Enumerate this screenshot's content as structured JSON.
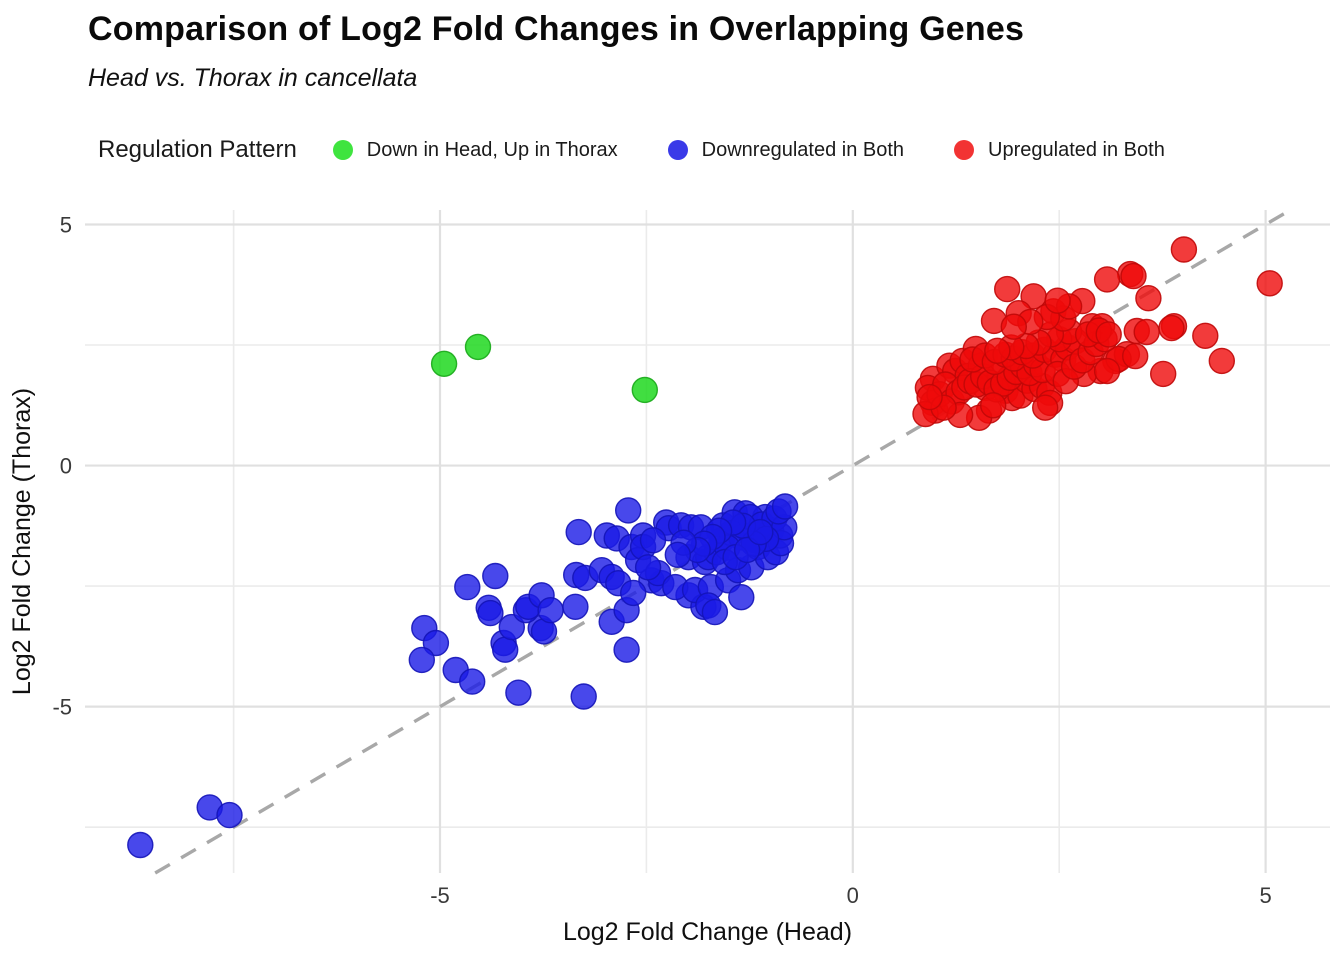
{
  "header": {
    "title": "Comparison of Log2 Fold Changes in Overlapping Genes",
    "subtitle": "Head vs. Thorax in cancellata"
  },
  "legend": {
    "title": "Regulation Pattern"
  },
  "chart_data": {
    "type": "scatter",
    "title": "Comparison of Log2 Fold Changes in Overlapping Genes",
    "subtitle": "Head vs. Thorax in cancellata",
    "xlabel": "Log2 Fold Change (Head)",
    "ylabel": "Log2 Fold Change (Thorax)",
    "xlim": [
      -9.3,
      5.78
    ],
    "ylim": [
      -8.45,
      5.3
    ],
    "x_major_ticks": [
      -5,
      0,
      5
    ],
    "y_major_ticks": [
      5,
      0,
      -5
    ],
    "x_minor_gridlines": [
      -7.5,
      -2.5,
      2.5
    ],
    "y_minor_gridlines": [
      -7.5,
      -2.5,
      2.5
    ],
    "grid": true,
    "legend_position": "top",
    "legend_title": "Regulation Pattern",
    "identity_line": {
      "type": "dashed",
      "slope": 1,
      "intercept": 0,
      "color": "#a8a8a8"
    },
    "colors": {
      "major_grid": "#e0e0e0",
      "minor_grid": "#ebebeb",
      "tick_label": "#3a3a3a",
      "axis_title": "#101010"
    },
    "series": [
      {
        "name": "Down in Head, Up in Thorax",
        "color": "#20d820",
        "stroke": "#18a818",
        "legend_color": "#3fe43f",
        "opacity": 0.85,
        "points": [
          [
            -4.95,
            2.11
          ],
          [
            -4.54,
            2.46
          ],
          [
            -2.52,
            1.57
          ]
        ]
      },
      {
        "name": "Downregulated in Both",
        "color": "#1a1ae6",
        "stroke": "#1414b8",
        "legend_color": "#3a3ae8",
        "opacity": 0.8,
        "points": [
          [
            -8.63,
            -7.87
          ],
          [
            -7.79,
            -7.09
          ],
          [
            -7.55,
            -7.25
          ],
          [
            -5.19,
            -3.37
          ],
          [
            -5.05,
            -3.68
          ],
          [
            -5.22,
            -4.03
          ],
          [
            -4.67,
            -2.52
          ],
          [
            -4.33,
            -2.29
          ],
          [
            -4.41,
            -2.95
          ],
          [
            -4.39,
            -3.06
          ],
          [
            -4.81,
            -4.24
          ],
          [
            -4.61,
            -4.48
          ],
          [
            -4.23,
            -3.68
          ],
          [
            -4.21,
            -3.82
          ],
          [
            -4.13,
            -3.35
          ],
          [
            -3.78,
            -3.37
          ],
          [
            -3.74,
            -3.44
          ],
          [
            -4.05,
            -4.71
          ],
          [
            -3.26,
            -4.79
          ],
          [
            -3.32,
            -1.38
          ],
          [
            -3.96,
            -3.0
          ],
          [
            -3.93,
            -2.93
          ],
          [
            -3.77,
            -2.69
          ],
          [
            -3.66,
            -3.0
          ],
          [
            -3.36,
            -2.93
          ],
          [
            -3.35,
            -2.27
          ],
          [
            -3.24,
            -2.33
          ],
          [
            -3.04,
            -2.17
          ],
          [
            -2.92,
            -2.31
          ],
          [
            -2.84,
            -2.44
          ],
          [
            -2.72,
            -0.93
          ],
          [
            -2.98,
            -1.45
          ],
          [
            -2.86,
            -1.51
          ],
          [
            -2.68,
            -1.69
          ],
          [
            -2.54,
            -1.45
          ],
          [
            -2.92,
            -3.24
          ],
          [
            -2.74,
            -3.0
          ],
          [
            -2.74,
            -3.82
          ],
          [
            -2.26,
            -1.18
          ],
          [
            -2.23,
            -1.3
          ],
          [
            -2.08,
            -1.24
          ],
          [
            -1.96,
            -1.28
          ],
          [
            -2.44,
            -2.38
          ],
          [
            -2.32,
            -2.44
          ],
          [
            -1.99,
            -2.69
          ],
          [
            -1.81,
            -2.93
          ],
          [
            -1.99,
            -1.9
          ],
          [
            -1.79,
            -2.0
          ],
          [
            -2.6,
            -1.96
          ],
          [
            -2.54,
            -1.69
          ],
          [
            -2.42,
            -1.55
          ],
          [
            -2.66,
            -2.64
          ],
          [
            -2.36,
            -2.23
          ],
          [
            -2.48,
            -2.11
          ],
          [
            -2.15,
            -2.52
          ],
          [
            -1.91,
            -2.58
          ],
          [
            -1.72,
            -2.52
          ],
          [
            -1.51,
            -2.38
          ],
          [
            -1.39,
            -2.17
          ],
          [
            -1.23,
            -2.11
          ],
          [
            -1.75,
            -2.9
          ],
          [
            -1.35,
            -2.73
          ],
          [
            -1.67,
            -3.04
          ],
          [
            -1.57,
            -1.24
          ],
          [
            -1.43,
            -0.97
          ],
          [
            -1.3,
            -0.99
          ],
          [
            -1.23,
            -1.45
          ],
          [
            -1.17,
            -1.55
          ],
          [
            -1.06,
            -1.07
          ],
          [
            -0.99,
            -1.34
          ],
          [
            -1.84,
            -1.28
          ],
          [
            -1.75,
            -1.9
          ],
          [
            -1.65,
            -1.8
          ],
          [
            -1.59,
            -1.55
          ],
          [
            -1.47,
            -1.4
          ],
          [
            -1.35,
            -1.49
          ],
          [
            -1.15,
            -1.69
          ],
          [
            -1.03,
            -1.9
          ],
          [
            -0.93,
            -1.8
          ],
          [
            -0.88,
            -1.45
          ],
          [
            -0.87,
            -1.61
          ],
          [
            -1.24,
            -1.07
          ],
          [
            -1.1,
            -1.22
          ],
          [
            -0.95,
            -1.1
          ],
          [
            -0.83,
            -1.28
          ],
          [
            -0.9,
            -0.95
          ],
          [
            -1.05,
            -1.52
          ],
          [
            -1.2,
            -1.62
          ],
          [
            -1.33,
            -1.25
          ],
          [
            -1.45,
            -1.18
          ],
          [
            -1.52,
            -1.7
          ],
          [
            -1.62,
            -1.35
          ],
          [
            -1.7,
            -1.48
          ],
          [
            -1.8,
            -1.62
          ],
          [
            -1.88,
            -1.75
          ],
          [
            -1.55,
            -2.0
          ],
          [
            -1.42,
            -1.9
          ],
          [
            -1.28,
            -1.75
          ],
          [
            -1.12,
            -1.38
          ],
          [
            -0.82,
            -0.85
          ],
          [
            -2.05,
            -1.6
          ],
          [
            -2.12,
            -1.85
          ]
        ]
      },
      {
        "name": "Upregulated in Both",
        "color": "#ef0a0a",
        "stroke": "#c00808",
        "legend_color": "#f23333",
        "opacity": 0.8,
        "points": [
          [
            4.01,
            4.48
          ],
          [
            3.36,
            3.97
          ],
          [
            3.4,
            3.93
          ],
          [
            3.08,
            3.86
          ],
          [
            5.05,
            3.78
          ],
          [
            1.87,
            3.66
          ],
          [
            3.58,
            3.47
          ],
          [
            2.19,
            3.51
          ],
          [
            2.78,
            3.41
          ],
          [
            2.01,
            3.16
          ],
          [
            1.71,
            3.0
          ],
          [
            2.43,
            3.2
          ],
          [
            2.9,
            2.89
          ],
          [
            3.89,
            2.89
          ],
          [
            3.44,
            2.79
          ],
          [
            4.27,
            2.69
          ],
          [
            4.47,
            2.17
          ],
          [
            3.76,
            1.9
          ],
          [
            3.18,
            2.17
          ],
          [
            3.32,
            2.31
          ],
          [
            3.0,
            1.96
          ],
          [
            2.8,
            1.9
          ],
          [
            3.02,
            2.89
          ],
          [
            3.56,
            2.77
          ],
          [
            3.86,
            2.85
          ],
          [
            3.22,
            2.21
          ],
          [
            3.42,
            2.27
          ],
          [
            3.08,
            1.96
          ],
          [
            0.97,
            1.8
          ],
          [
            0.91,
            1.61
          ],
          [
            0.97,
            1.3
          ],
          [
            1.0,
            1.14
          ],
          [
            1.17,
            2.07
          ],
          [
            1.24,
            1.96
          ],
          [
            1.33,
            2.17
          ],
          [
            1.39,
            1.86
          ],
          [
            1.49,
            2.42
          ],
          [
            1.55,
            2.07
          ],
          [
            1.61,
            1.61
          ],
          [
            1.65,
            1.14
          ],
          [
            1.53,
            0.99
          ],
          [
            1.78,
            1.9
          ],
          [
            1.85,
            1.55
          ],
          [
            1.93,
            1.4
          ],
          [
            2.03,
            1.45
          ],
          [
            2.11,
            1.76
          ],
          [
            2.2,
            1.59
          ],
          [
            2.29,
            1.65
          ],
          [
            2.38,
            1.51
          ],
          [
            2.39,
            1.3
          ],
          [
            2.33,
            1.2
          ],
          [
            0.88,
            1.07
          ],
          [
            1.05,
            1.48
          ],
          [
            1.12,
            1.68
          ],
          [
            1.2,
            1.33
          ],
          [
            1.28,
            1.52
          ],
          [
            1.35,
            1.62
          ],
          [
            1.42,
            1.75
          ],
          [
            1.5,
            1.68
          ],
          [
            1.58,
            1.85
          ],
          [
            1.66,
            1.72
          ],
          [
            1.74,
            1.58
          ],
          [
            1.82,
            1.7
          ],
          [
            1.9,
            1.82
          ],
          [
            1.98,
            1.94
          ],
          [
            2.06,
            2.06
          ],
          [
            2.14,
            1.92
          ],
          [
            2.22,
            2.1
          ],
          [
            2.3,
            1.98
          ],
          [
            1.45,
            2.2
          ],
          [
            1.6,
            2.28
          ],
          [
            1.72,
            2.15
          ],
          [
            1.85,
            2.3
          ],
          [
            1.95,
            2.22
          ],
          [
            2.05,
            2.35
          ],
          [
            2.18,
            2.28
          ],
          [
            2.32,
            2.4
          ],
          [
            2.45,
            2.3
          ],
          [
            2.55,
            2.2
          ],
          [
            2.6,
            2.45
          ],
          [
            2.7,
            2.58
          ],
          [
            2.48,
            1.9
          ],
          [
            2.58,
            1.75
          ],
          [
            2.68,
            2.05
          ],
          [
            2.78,
            2.18
          ],
          [
            2.88,
            2.35
          ],
          [
            2.95,
            2.52
          ],
          [
            3.05,
            2.62
          ],
          [
            1.3,
            1.05
          ],
          [
            1.7,
            1.25
          ],
          [
            2.5,
            2.62
          ],
          [
            2.62,
            2.78
          ],
          [
            2.4,
            2.72
          ],
          [
            2.25,
            2.55
          ],
          [
            2.1,
            2.48
          ],
          [
            1.92,
            2.45
          ],
          [
            1.75,
            2.38
          ],
          [
            2.85,
            2.72
          ],
          [
            2.98,
            2.8
          ],
          [
            3.1,
            2.72
          ],
          [
            1.1,
            1.2
          ],
          [
            0.93,
            1.42
          ],
          [
            2.55,
            3.05
          ],
          [
            2.35,
            3.08
          ],
          [
            2.15,
            2.98
          ],
          [
            1.95,
            2.88
          ],
          [
            2.62,
            3.3
          ],
          [
            2.48,
            3.42
          ]
        ]
      }
    ]
  }
}
